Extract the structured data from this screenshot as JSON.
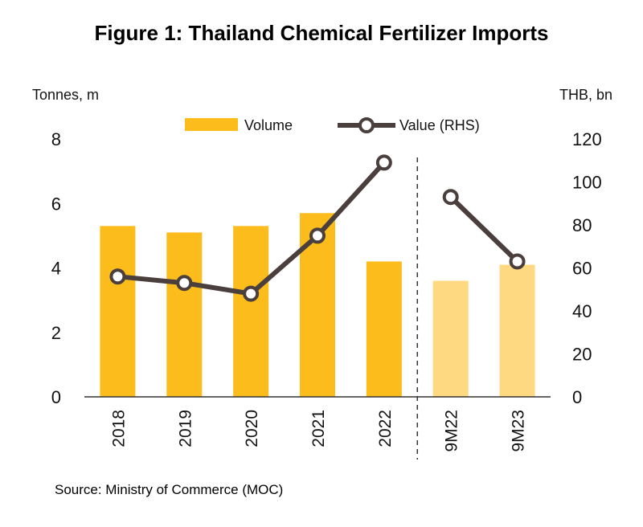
{
  "chart_data": {
    "type": "bar",
    "title": "Figure 1: Thailand Chemical Fertilizer Imports",
    "source": "Source: Ministry of Commerce (MOC)",
    "left_axis_label": "Tonnes, m",
    "right_axis_label": "THB, bn",
    "categories": [
      "2018",
      "2019",
      "2020",
      "2021",
      "2022",
      "9M22",
      "9M23"
    ],
    "series": [
      {
        "name": "Volume",
        "type": "bar",
        "axis": "left",
        "values": [
          5.3,
          5.1,
          5.3,
          5.7,
          4.2,
          3.6,
          4.1
        ]
      },
      {
        "name": "Value (RHS)",
        "type": "line",
        "axis": "right",
        "values": [
          56,
          53,
          48,
          75,
          109,
          93,
          63
        ]
      }
    ],
    "left_ylim": [
      0,
      8
    ],
    "left_ticks": [
      "0",
      "2",
      "4",
      "6",
      "8"
    ],
    "right_ylim": [
      0,
      120
    ],
    "right_ticks": [
      "0",
      "20",
      "40",
      "60",
      "80",
      "100",
      "120"
    ],
    "divider_after_category": "2022",
    "colors": {
      "bar_annual": "#FBBC1C",
      "bar_partial": "#FFD982",
      "line": "#4A3F3D",
      "marker_fill": "#FFFFFF",
      "axis": "#333333"
    },
    "legend_position": "top-center"
  }
}
